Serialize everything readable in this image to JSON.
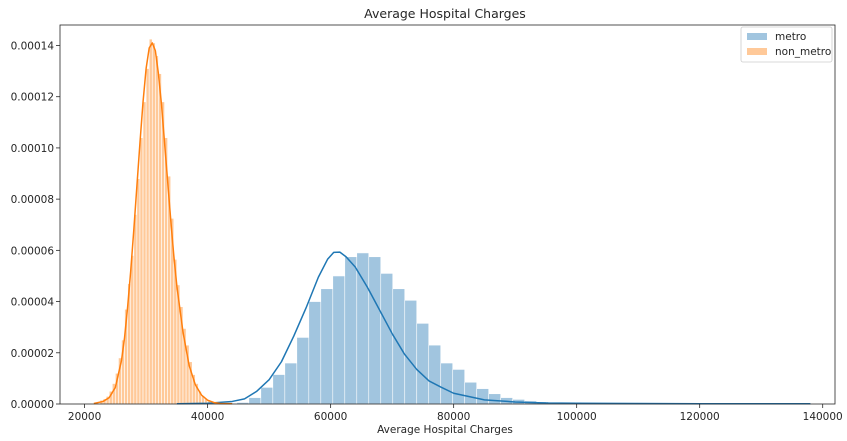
{
  "chart_data": {
    "type": "histogram",
    "title": "Average Hospital Charges",
    "xlabel": "Average Hospital Charges",
    "ylabel": "",
    "xlim": [
      16000,
      142000
    ],
    "ylim": [
      0,
      0.000148
    ],
    "xticks": [
      20000,
      40000,
      60000,
      80000,
      100000,
      120000,
      140000
    ],
    "yticks": [
      0,
      2e-05,
      4e-05,
      6e-05,
      8e-05,
      0.0001,
      0.00012,
      0.00014
    ],
    "xtick_labels": [
      "20000",
      "40000",
      "60000",
      "80000",
      "100000",
      "120000",
      "140000"
    ],
    "ytick_labels": [
      "0.00000",
      "0.00002",
      "0.00004",
      "0.00006",
      "0.00008",
      "0.00010",
      "0.00012",
      "0.00014"
    ],
    "grid": false,
    "legend_position": "top-right",
    "series": [
      {
        "name": "metro",
        "color": "#1f77b4",
        "bar_color": "#a1c5df",
        "bin_width": 1950,
        "bins": [
          [
            35000,
            1e-07
          ],
          [
            36950,
            1e-07
          ],
          [
            38900,
            1e-07
          ],
          [
            40850,
            2e-07
          ],
          [
            42800,
            3e-07
          ],
          [
            44750,
            6e-07
          ],
          [
            46700,
            2.5e-06
          ],
          [
            48650,
            6.5e-06
          ],
          [
            50600,
            1.15e-05
          ],
          [
            52550,
            1.6e-05
          ],
          [
            54500,
            2.6e-05
          ],
          [
            56450,
            4e-05
          ],
          [
            58400,
            4.5e-05
          ],
          [
            60350,
            5e-05
          ],
          [
            62300,
            5.75e-05
          ],
          [
            64250,
            5.9e-05
          ],
          [
            66200,
            5.75e-05
          ],
          [
            68150,
            5.1e-05
          ],
          [
            70100,
            4.5e-05
          ],
          [
            72050,
            4.05e-05
          ],
          [
            74000,
            3.15e-05
          ],
          [
            75950,
            2.3e-05
          ],
          [
            77900,
            1.6e-05
          ],
          [
            79850,
            1.35e-05
          ],
          [
            81800,
            8.5e-06
          ],
          [
            83750,
            6e-06
          ],
          [
            85700,
            4e-06
          ],
          [
            87650,
            2.5e-06
          ],
          [
            89600,
            1.8e-06
          ],
          [
            91550,
            1.2e-06
          ],
          [
            93500,
            9e-07
          ],
          [
            95450,
            7e-07
          ],
          [
            97400,
            6e-07
          ],
          [
            99350,
            5e-07
          ],
          [
            101300,
            4e-07
          ],
          [
            103250,
            4e-07
          ],
          [
            105200,
            3e-07
          ],
          [
            107150,
            3e-07
          ],
          [
            109100,
            2e-07
          ],
          [
            111050,
            2e-07
          ],
          [
            113000,
            2e-07
          ],
          [
            114950,
            2e-07
          ],
          [
            116900,
            1e-07
          ],
          [
            118850,
            1e-07
          ],
          [
            120800,
            1e-07
          ],
          [
            122750,
            1e-07
          ],
          [
            124700,
            1e-07
          ],
          [
            126650,
            1e-07
          ],
          [
            128600,
            1e-07
          ],
          [
            130550,
            1e-07
          ],
          [
            132500,
            1e-07
          ],
          [
            134450,
            1e-07
          ],
          [
            136400,
            1e-07
          ]
        ],
        "kde": [
          [
            35000,
            1e-07
          ],
          [
            40000,
            3e-07
          ],
          [
            44000,
            1e-06
          ],
          [
            46000,
            2e-06
          ],
          [
            48000,
            5e-06
          ],
          [
            50000,
            9.5e-06
          ],
          [
            52000,
            1.65e-05
          ],
          [
            54000,
            2.65e-05
          ],
          [
            56000,
            3.75e-05
          ],
          [
            58000,
            4.95e-05
          ],
          [
            59500,
            5.65e-05
          ],
          [
            60500,
            5.92e-05
          ],
          [
            61500,
            5.93e-05
          ],
          [
            62500,
            5.75e-05
          ],
          [
            64000,
            5.35e-05
          ],
          [
            66000,
            4.55e-05
          ],
          [
            68000,
            3.65e-05
          ],
          [
            70000,
            2.75e-05
          ],
          [
            72000,
            1.95e-05
          ],
          [
            74000,
            1.35e-05
          ],
          [
            76000,
            9e-06
          ],
          [
            78000,
            6.5e-06
          ],
          [
            80000,
            4.2e-06
          ],
          [
            85000,
            1.6e-06
          ],
          [
            90000,
            8e-07
          ],
          [
            95000,
            4e-07
          ],
          [
            100000,
            3e-07
          ],
          [
            110000,
            2e-07
          ],
          [
            120000,
            1e-07
          ],
          [
            130000,
            1e-07
          ],
          [
            138000,
            1e-07
          ]
        ]
      },
      {
        "name": "non_metro",
        "color": "#ff7f0e",
        "bar_color": "#ffc999",
        "bin_width": 500,
        "bins": [
          [
            22500,
            1.5e-06
          ],
          [
            23000,
            2e-06
          ],
          [
            23500,
            3e-06
          ],
          [
            24000,
            5e-06
          ],
          [
            24500,
            8e-06
          ],
          [
            25000,
            1.2e-05
          ],
          [
            25500,
            1.8e-05
          ],
          [
            26000,
            2.5e-05
          ],
          [
            26500,
            3.7e-05
          ],
          [
            27000,
            4.7e-05
          ],
          [
            27500,
            5.8e-05
          ],
          [
            28000,
            7.4e-05
          ],
          [
            28500,
            8.8e-05
          ],
          [
            29000,
            0.000104
          ],
          [
            29500,
            0.000118
          ],
          [
            30000,
            0.000131
          ],
          [
            30500,
            0.0001425
          ],
          [
            31000,
            0.000141
          ],
          [
            31500,
            0.000136
          ],
          [
            32000,
            0.000129
          ],
          [
            32500,
            0.000118
          ],
          [
            33000,
            0.000104
          ],
          [
            33500,
            8.9e-05
          ],
          [
            34000,
            7.25e-05
          ],
          [
            34500,
            5.65e-05
          ],
          [
            35000,
            4.65e-05
          ],
          [
            35500,
            3.8e-05
          ],
          [
            36000,
            2.95e-05
          ],
          [
            36500,
            2.3e-05
          ],
          [
            37000,
            1.65e-05
          ],
          [
            37500,
            1.15e-05
          ],
          [
            38000,
            8e-06
          ],
          [
            38500,
            5e-06
          ],
          [
            39000,
            3.2e-06
          ],
          [
            39500,
            2e-06
          ],
          [
            40000,
            1.2e-06
          ],
          [
            40500,
            8e-07
          ],
          [
            41000,
            5e-07
          ],
          [
            41500,
            3e-07
          ]
        ],
        "kde": [
          [
            21500,
            2e-07
          ],
          [
            23000,
            1e-06
          ],
          [
            24000,
            2.5e-06
          ],
          [
            25000,
            6.5e-06
          ],
          [
            26000,
            1.7e-05
          ],
          [
            26500,
            2.6e-05
          ],
          [
            27000,
            3.8e-05
          ],
          [
            27500,
            5.2e-05
          ],
          [
            28000,
            6.8e-05
          ],
          [
            28500,
            8.5e-05
          ],
          [
            29000,
            0.000102
          ],
          [
            29500,
            0.000118
          ],
          [
            30000,
            0.000131
          ],
          [
            30500,
            0.000139
          ],
          [
            31000,
            0.000141
          ],
          [
            31500,
            0.000138
          ],
          [
            32000,
            0.000129
          ],
          [
            32500,
            0.000117
          ],
          [
            33000,
            0.000102
          ],
          [
            33500,
            8.7e-05
          ],
          [
            34000,
            7.2e-05
          ],
          [
            34500,
            5.8e-05
          ],
          [
            35000,
            4.6e-05
          ],
          [
            36000,
            2.8e-05
          ],
          [
            37000,
            1.5e-05
          ],
          [
            38000,
            7.5e-06
          ],
          [
            39000,
            3.5e-06
          ],
          [
            40000,
            1.5e-06
          ],
          [
            41000,
            6e-07
          ],
          [
            42000,
            2e-07
          ],
          [
            44000,
            1e-07
          ]
        ]
      }
    ]
  }
}
